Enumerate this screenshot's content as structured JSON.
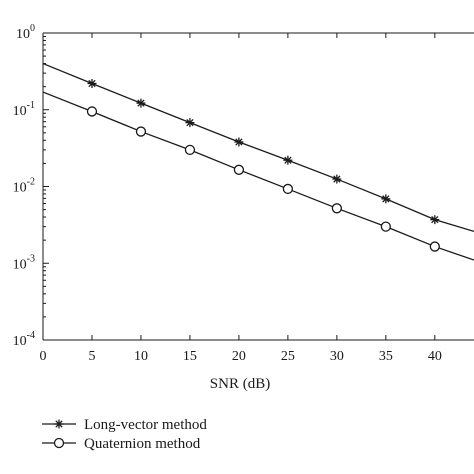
{
  "chart_data": {
    "type": "line",
    "title": "",
    "xlabel": "SNR (dB)",
    "ylabel": "",
    "xlim": [
      0,
      44
    ],
    "ylim": [
      0.0001,
      1
    ],
    "yscale": "log",
    "grid": false,
    "legend_position": "bottom-left, below axes",
    "x_ticks": [
      0,
      5,
      10,
      15,
      20,
      25,
      30,
      35,
      40
    ],
    "y_ticks": [
      {
        "value": 1,
        "base": "10",
        "exp": "0"
      },
      {
        "value": 0.1,
        "base": "10",
        "exp": "-1"
      },
      {
        "value": 0.01,
        "base": "10",
        "exp": "-2"
      },
      {
        "value": 0.001,
        "base": "10",
        "exp": "-3"
      },
      {
        "value": 0.0001,
        "base": "10",
        "exp": "-4"
      }
    ],
    "series": [
      {
        "name": "Long-vector method",
        "marker": "star",
        "color": "#1a1a1a",
        "x": [
          0,
          5,
          10,
          15,
          20,
          25,
          30,
          35,
          40,
          44
        ],
        "y": [
          0.4,
          0.22,
          0.122,
          0.068,
          0.038,
          0.022,
          0.0125,
          0.0069,
          0.0037,
          0.0026
        ],
        "marker_x": [
          5,
          10,
          15,
          20,
          25,
          30,
          35,
          40
        ]
      },
      {
        "name": "Quaternion method",
        "marker": "circle",
        "color": "#1a1a1a",
        "x": [
          0,
          5,
          10,
          15,
          20,
          25,
          30,
          35,
          40,
          44
        ],
        "y": [
          0.17,
          0.095,
          0.052,
          0.03,
          0.0165,
          0.0093,
          0.0052,
          0.003,
          0.00165,
          0.0011
        ],
        "marker_x": [
          5,
          10,
          15,
          20,
          25,
          30,
          35,
          40
        ]
      }
    ]
  }
}
